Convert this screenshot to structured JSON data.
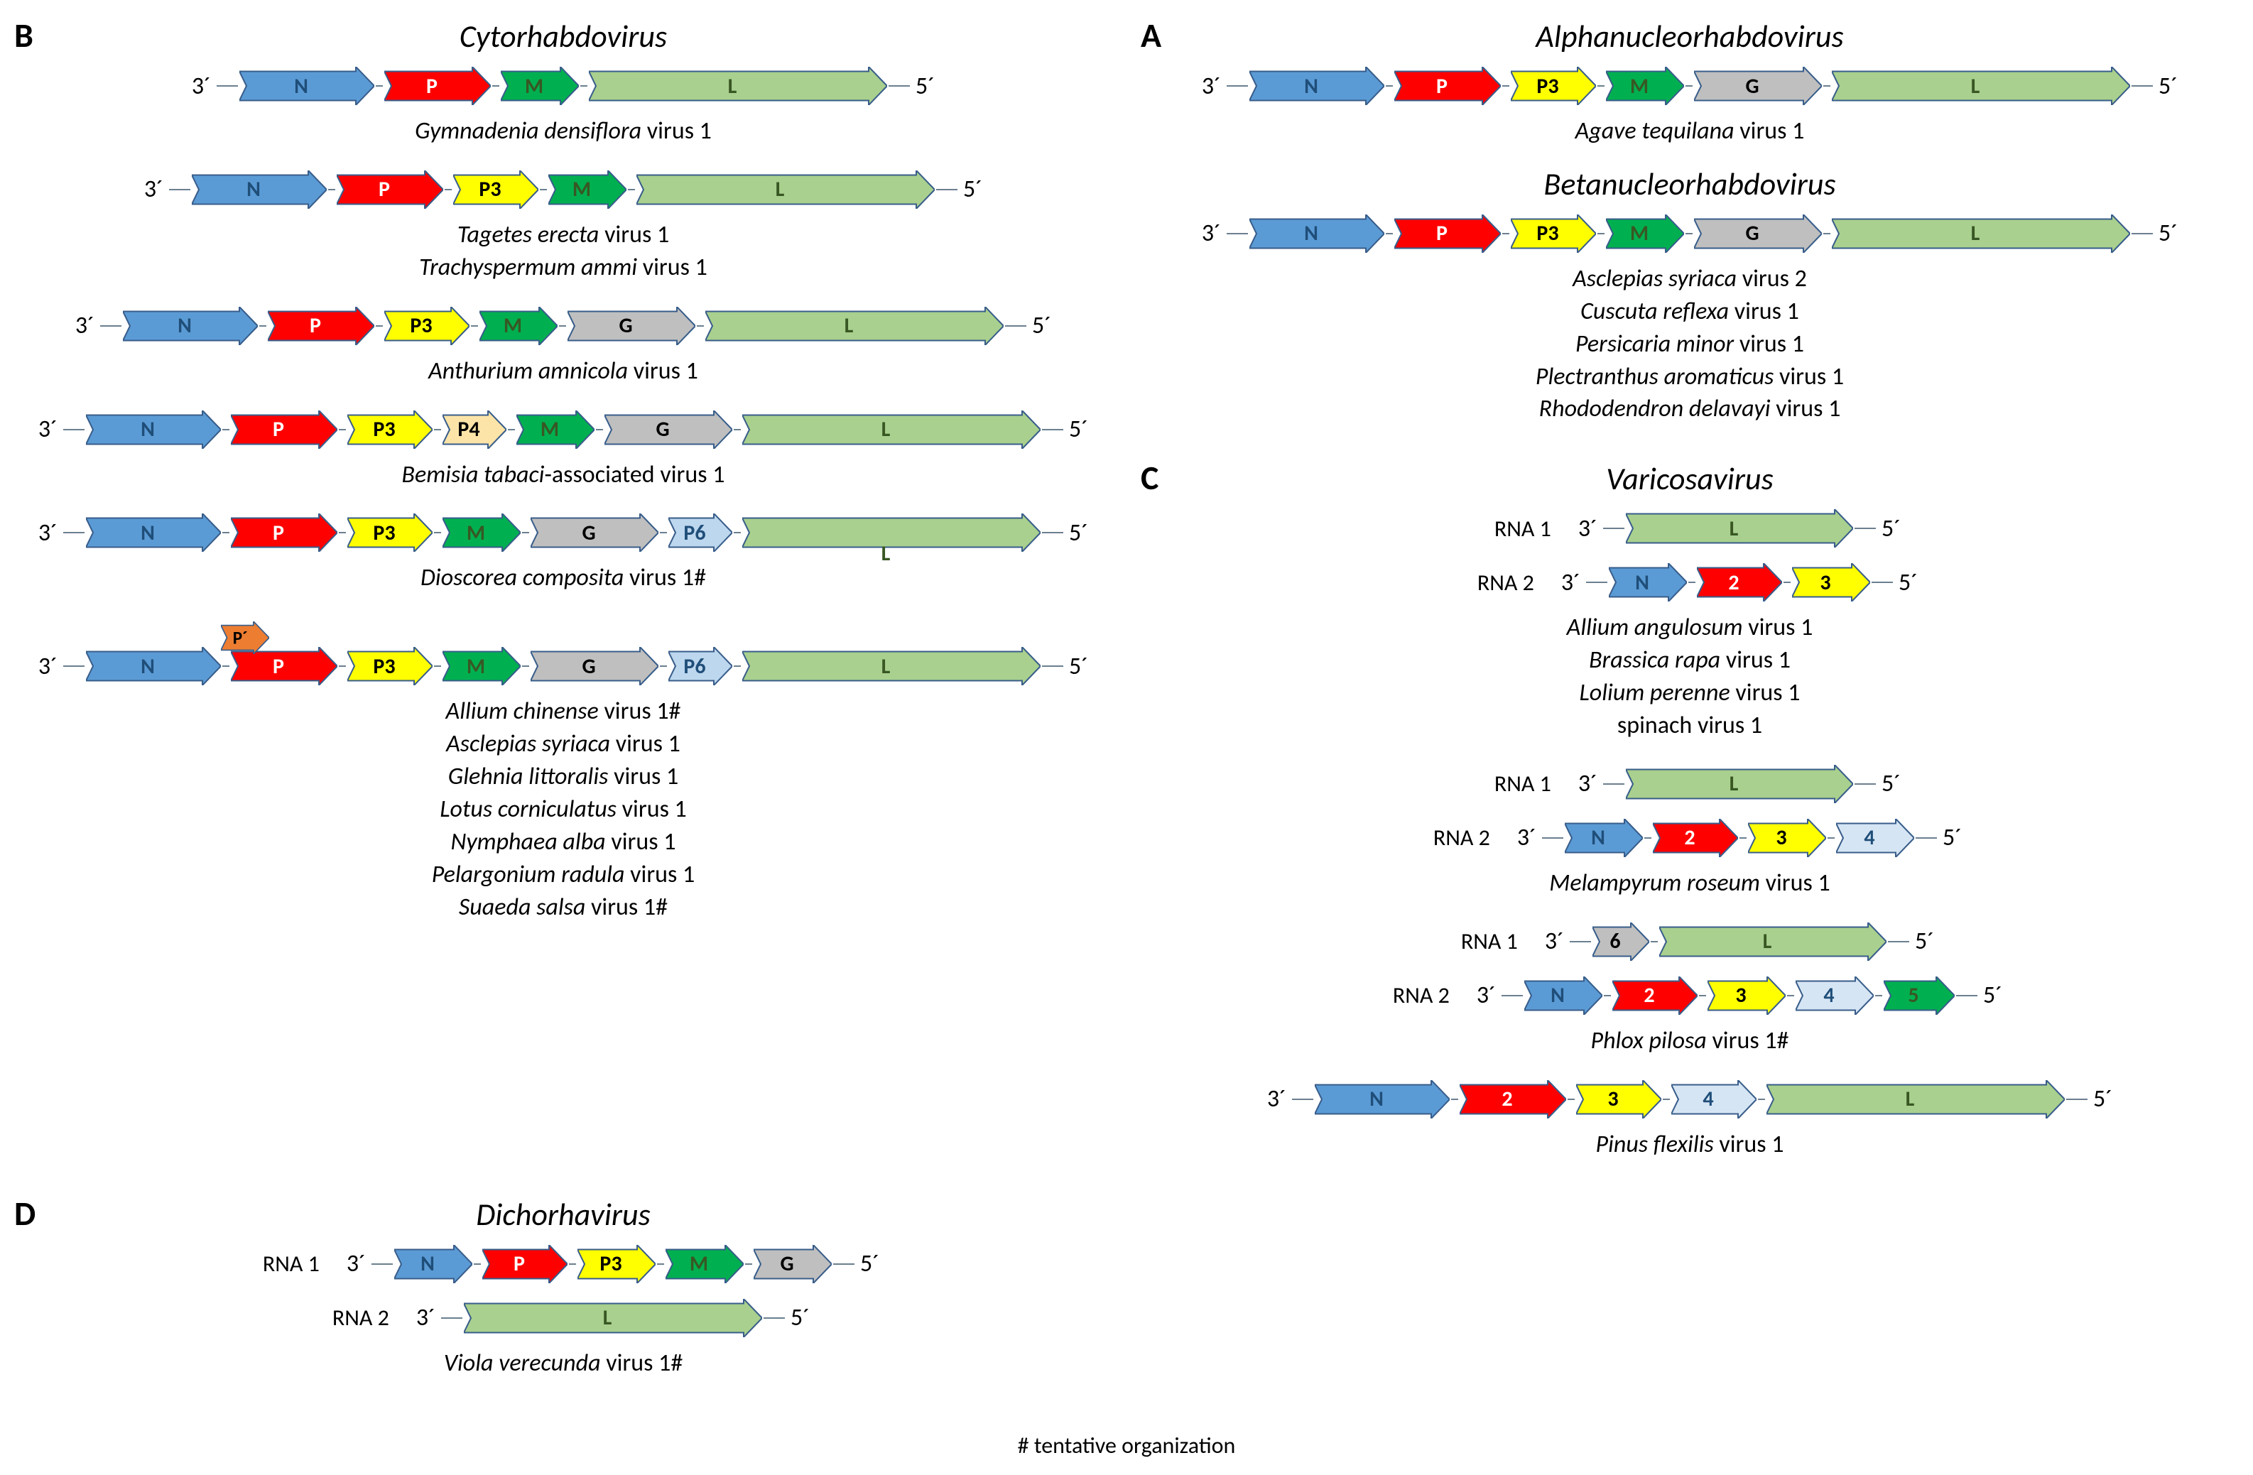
{
  "colors": {
    "N": "#5b9bd5",
    "P": "#ff0000",
    "P3": "#ffff00",
    "P4": "#fce4a8",
    "M": "#00b050",
    "G": "#bfbfbf",
    "L": "#a9d08e",
    "P6": "#bdd7ee",
    "Pprime": "#ed7d31",
    "aux": "#d6e5f4",
    "stroke": "#385d8a",
    "text_dark": "#1f4e79",
    "text_green": "#385723",
    "line": "#6b7f8f"
  },
  "gene_widths": {
    "N": 190,
    "P": 150,
    "P3": 120,
    "P4": 90,
    "M": 110,
    "G": 180,
    "L": 420,
    "L_short": 320,
    "P6": 90,
    "Pprime": 80,
    "2": 120,
    "3": 110,
    "4": 110,
    "5": 100,
    "6": 80,
    "line": 30
  },
  "arrow_height": 54,
  "arrow_head": 26,
  "stroke_width": 2,
  "panels": {
    "A": {
      "label": "A",
      "groups": [
        {
          "title": "Alphanucleorhabdovirus",
          "genomes": [
            {
              "ends": [
                "3´",
                "5´"
              ],
              "genes": [
                {
                  "l": "N",
                  "c": "N",
                  "w": "N"
                },
                {
                  "l": "P",
                  "c": "P",
                  "w": "P"
                },
                {
                  "l": "P3",
                  "c": "P3",
                  "w": "P3"
                },
                {
                  "l": "M",
                  "c": "M",
                  "w": "M"
                },
                {
                  "l": "G",
                  "c": "G",
                  "w": "G"
                },
                {
                  "l": "L",
                  "c": "L",
                  "w": "L"
                }
              ]
            }
          ],
          "species": [
            [
              "Agave tequilana",
              " virus 1"
            ]
          ]
        },
        {
          "title": "Betanucleorhabdovirus",
          "genomes": [
            {
              "ends": [
                "3´",
                "5´"
              ],
              "genes": [
                {
                  "l": "N",
                  "c": "N",
                  "w": "N"
                },
                {
                  "l": "P",
                  "c": "P",
                  "w": "P"
                },
                {
                  "l": "P3",
                  "c": "P3",
                  "w": "P3"
                },
                {
                  "l": "M",
                  "c": "M",
                  "w": "M"
                },
                {
                  "l": "G",
                  "c": "G",
                  "w": "G"
                },
                {
                  "l": "L",
                  "c": "L",
                  "w": "L"
                }
              ]
            }
          ],
          "species": [
            [
              "Asclepias syriaca",
              " virus 2"
            ],
            [
              "Cuscuta reflexa",
              " virus 1"
            ],
            [
              "Persicaria minor",
              " virus 1"
            ],
            [
              "Plectranthus aromaticus",
              " virus 1"
            ],
            [
              "Rhododendron delavayi",
              " virus 1"
            ]
          ]
        }
      ]
    },
    "B": {
      "label": "B",
      "groups": [
        {
          "title": "Cytorhabdovirus",
          "genomes": [
            {
              "ends": [
                "3´",
                "5´"
              ],
              "genes": [
                {
                  "l": "N",
                  "c": "N",
                  "w": "N"
                },
                {
                  "l": "P",
                  "c": "P",
                  "w": "P"
                },
                {
                  "l": "M",
                  "c": "M",
                  "w": "M"
                },
                {
                  "l": "L",
                  "c": "L",
                  "w": "L"
                }
              ]
            }
          ],
          "species": [
            [
              "Gymnadenia densiflora",
              " virus 1"
            ]
          ]
        },
        {
          "genomes": [
            {
              "ends": [
                "3´",
                "5´"
              ],
              "genes": [
                {
                  "l": "N",
                  "c": "N",
                  "w": "N"
                },
                {
                  "l": "P",
                  "c": "P",
                  "w": "P"
                },
                {
                  "l": "P3",
                  "c": "P3",
                  "w": "P3"
                },
                {
                  "l": "M",
                  "c": "M",
                  "w": "M"
                },
                {
                  "l": "L",
                  "c": "L",
                  "w": "L"
                }
              ]
            }
          ],
          "species": [
            [
              "Tagetes erecta",
              " virus 1"
            ],
            [
              "Trachyspermum ammi",
              " virus 1"
            ]
          ]
        },
        {
          "genomes": [
            {
              "ends": [
                "3´",
                "5´"
              ],
              "genes": [
                {
                  "l": "N",
                  "c": "N",
                  "w": "N"
                },
                {
                  "l": "P",
                  "c": "P",
                  "w": "P"
                },
                {
                  "l": "P3",
                  "c": "P3",
                  "w": "P3"
                },
                {
                  "l": "M",
                  "c": "M",
                  "w": "M"
                },
                {
                  "l": "G",
                  "c": "G",
                  "w": "G"
                },
                {
                  "l": "L",
                  "c": "L",
                  "w": "L"
                }
              ]
            }
          ],
          "species": [
            [
              "Anthurium amnicola",
              " virus 1"
            ]
          ]
        },
        {
          "genomes": [
            {
              "ends": [
                "3´",
                "5´"
              ],
              "genes": [
                {
                  "l": "N",
                  "c": "N",
                  "w": "N"
                },
                {
                  "l": "P",
                  "c": "P",
                  "w": "P"
                },
                {
                  "l": "P3",
                  "c": "P3",
                  "w": "P3"
                },
                {
                  "l": "P4",
                  "c": "P4",
                  "w": "P4"
                },
                {
                  "l": "M",
                  "c": "M",
                  "w": "M"
                },
                {
                  "l": "G",
                  "c": "G",
                  "w": "G"
                },
                {
                  "l": "L",
                  "c": "L",
                  "w": "L"
                }
              ]
            }
          ],
          "species": [
            [
              "Bemisia tabaci",
              "-associated virus 1"
            ]
          ]
        },
        {
          "genomes": [
            {
              "ends": [
                "3´",
                "5´"
              ],
              "genes": [
                {
                  "l": "N",
                  "c": "N",
                  "w": "N"
                },
                {
                  "l": "P",
                  "c": "P",
                  "w": "P"
                },
                {
                  "l": "P3",
                  "c": "P3",
                  "w": "P3"
                },
                {
                  "l": "M",
                  "c": "M",
                  "w": "M"
                },
                {
                  "l": "G",
                  "c": "G",
                  "w": "G"
                },
                {
                  "l": "P6",
                  "c": "P6",
                  "w": "P6"
                },
                {
                  "l": "L",
                  "c": "L",
                  "w": "L",
                  "label_below": true
                }
              ]
            }
          ],
          "species": [
            [
              "Dioscorea composita",
              " virus 1#"
            ]
          ]
        },
        {
          "genomes": [
            {
              "ends": [
                "3´",
                "5´"
              ],
              "overlay": {
                "l": "P´",
                "c": "Pprime",
                "w": "Pprime",
                "over": 1
              },
              "genes": [
                {
                  "l": "N",
                  "c": "N",
                  "w": "N"
                },
                {
                  "l": "P",
                  "c": "P",
                  "w": "P"
                },
                {
                  "l": "P3",
                  "c": "P3",
                  "w": "P3"
                },
                {
                  "l": "M",
                  "c": "M",
                  "w": "M"
                },
                {
                  "l": "G",
                  "c": "G",
                  "w": "G"
                },
                {
                  "l": "P6",
                  "c": "P6",
                  "w": "P6"
                },
                {
                  "l": "L",
                  "c": "L",
                  "w": "L"
                }
              ]
            }
          ],
          "species": [
            [
              "Allium chinense",
              " virus 1#"
            ],
            [
              "Asclepias syriaca",
              " virus 1"
            ],
            [
              "Glehnia littoralis",
              " virus 1"
            ],
            [
              "Lotus corniculatus",
              " virus 1"
            ],
            [
              "Nymphaea alba",
              " virus 1"
            ],
            [
              "Pelargonium radula",
              " virus 1"
            ],
            [
              "Suaeda salsa",
              " virus 1#"
            ]
          ]
        }
      ]
    },
    "C": {
      "label": "C",
      "groups": [
        {
          "title": "Varicosavirus",
          "genomes": [
            {
              "rna": "RNA 1",
              "ends": [
                "3´",
                "5´"
              ],
              "genes": [
                {
                  "l": "L",
                  "c": "L",
                  "w": "L_short"
                }
              ]
            },
            {
              "rna": "RNA 2",
              "ends": [
                "3´",
                "5´"
              ],
              "genes": [
                {
                  "l": "N",
                  "c": "N",
                  "w": "M"
                },
                {
                  "l": "2",
                  "c": "P",
                  "w": "2"
                },
                {
                  "l": "3",
                  "c": "P3",
                  "w": "3"
                }
              ]
            }
          ],
          "species": [
            [
              "Allium angulosum",
              " virus 1"
            ],
            [
              "Brassica rapa",
              " virus 1"
            ],
            [
              "Lolium perenne",
              " virus 1"
            ],
            [
              "",
              "spinach virus 1"
            ]
          ]
        },
        {
          "genomes": [
            {
              "rna": "RNA 1",
              "ends": [
                "3´",
                "5´"
              ],
              "genes": [
                {
                  "l": "L",
                  "c": "L",
                  "w": "L_short"
                }
              ]
            },
            {
              "rna": "RNA 2",
              "ends": [
                "3´",
                "5´"
              ],
              "genes": [
                {
                  "l": "N",
                  "c": "N",
                  "w": "M"
                },
                {
                  "l": "2",
                  "c": "P",
                  "w": "2"
                },
                {
                  "l": "3",
                  "c": "P3",
                  "w": "3"
                },
                {
                  "l": "4",
                  "c": "aux",
                  "w": "4"
                }
              ]
            }
          ],
          "species": [
            [
              "Melampyrum roseum",
              " virus 1"
            ]
          ]
        },
        {
          "genomes": [
            {
              "rna": "RNA 1",
              "ends": [
                "3´",
                "5´"
              ],
              "genes": [
                {
                  "l": "6",
                  "c": "G",
                  "w": "6"
                },
                {
                  "l": "L",
                  "c": "L",
                  "w": "L_short"
                }
              ]
            },
            {
              "rna": "RNA 2",
              "ends": [
                "3´",
                "5´"
              ],
              "genes": [
                {
                  "l": "N",
                  "c": "N",
                  "w": "M"
                },
                {
                  "l": "2",
                  "c": "P",
                  "w": "2"
                },
                {
                  "l": "3",
                  "c": "P3",
                  "w": "3"
                },
                {
                  "l": "4",
                  "c": "aux",
                  "w": "4"
                },
                {
                  "l": "5",
                  "c": "M",
                  "w": "5"
                }
              ]
            }
          ],
          "species": [
            [
              "Phlox pilosa",
              " virus 1#"
            ]
          ]
        },
        {
          "genomes": [
            {
              "ends": [
                "3´",
                "5´"
              ],
              "genes": [
                {
                  "l": "N",
                  "c": "N",
                  "w": "N"
                },
                {
                  "l": "2",
                  "c": "P",
                  "w": "P"
                },
                {
                  "l": "3",
                  "c": "P3",
                  "w": "P3"
                },
                {
                  "l": "4",
                  "c": "aux",
                  "w": "P3"
                },
                {
                  "l": "L",
                  "c": "L",
                  "w": "L"
                }
              ]
            }
          ],
          "species": [
            [
              "Pinus flexilis",
              " virus 1"
            ]
          ]
        }
      ]
    },
    "D": {
      "label": "D",
      "groups": [
        {
          "title": "Dichorhavirus",
          "genomes": [
            {
              "rna": "RNA 1",
              "ends": [
                "3´",
                "5´"
              ],
              "genes": [
                {
                  "l": "N",
                  "c": "N",
                  "w": "M"
                },
                {
                  "l": "P",
                  "c": "P",
                  "w": "2"
                },
                {
                  "l": "P3",
                  "c": "P3",
                  "w": "3"
                },
                {
                  "l": "M",
                  "c": "M",
                  "w": "M"
                },
                {
                  "l": "G",
                  "c": "G",
                  "w": "M"
                }
              ]
            },
            {
              "rna": "RNA 2",
              "ends": [
                "3´",
                "5´"
              ],
              "genes": [
                {
                  "l": "L",
                  "c": "L",
                  "w": "L"
                }
              ]
            }
          ],
          "species": [
            [
              "Viola verecunda",
              " virus 1#"
            ]
          ]
        }
      ]
    }
  },
  "footnote": "# tentative organization"
}
